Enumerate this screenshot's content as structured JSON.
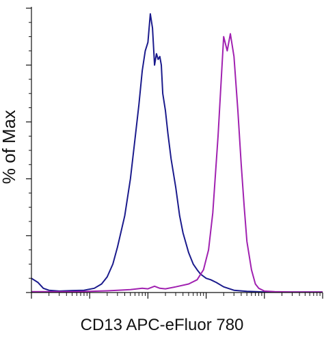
{
  "chart_data": {
    "type": "line",
    "title": "",
    "xlabel": "CD13 APC-eFluor 780",
    "ylabel": "% of Max",
    "x_scale": "log",
    "xlim": [
      1,
      100000
    ],
    "ylim": [
      0,
      100
    ],
    "grid": false,
    "legend": "none",
    "series": [
      {
        "color": "#1a1a8c",
        "x": [
          1.0,
          1.3,
          1.6,
          2.0,
          3.0,
          5.0,
          8.0,
          12.0,
          16.0,
          20.0,
          25.0,
          30.0,
          40.0,
          50.0,
          60.0,
          70.0,
          80.0,
          90.0,
          100.0,
          110.0,
          120.0,
          130.0,
          140.0,
          150.0,
          160.0,
          170.0,
          180.0,
          200.0,
          220.0,
          250.0,
          300.0,
          350.0,
          400.0,
          500.0,
          600.0,
          700.0,
          800.0,
          1000.0,
          1200.0,
          1500.0,
          2000.0,
          3000.0,
          5000.0,
          10000.0,
          30000.0,
          100000.0
        ],
        "y": [
          5.0,
          3.5,
          1.5,
          0.8,
          0.5,
          0.7,
          0.8,
          1.5,
          3.0,
          5.5,
          10.0,
          16.0,
          27.0,
          40.0,
          54.0,
          66.0,
          78.0,
          85.0,
          88.0,
          98.0,
          93.0,
          80.0,
          84.0,
          82.0,
          83.0,
          80.0,
          70.0,
          64.0,
          56.0,
          47.0,
          37.0,
          27.0,
          21.0,
          14.0,
          10.0,
          8.0,
          6.5,
          5.0,
          4.5,
          3.5,
          2.0,
          0.8,
          0.4,
          0.2,
          0.2,
          0.2
        ]
      },
      {
        "color": "#a020b0",
        "x": [
          1.0,
          5.0,
          10.0,
          20.0,
          30.0,
          50.0,
          80.0,
          100.0,
          130.0,
          160.0,
          200.0,
          300.0,
          500.0,
          700.0,
          900.0,
          1100.0,
          1300.0,
          1600.0,
          2000.0,
          2300.0,
          2600.0,
          3000.0,
          3500.0,
          4000.0,
          4500.0,
          5000.0,
          6000.0,
          7000.0,
          8000.0,
          10000.0,
          15000.0,
          30000.0,
          100000.0
        ],
        "y": [
          0.3,
          0.3,
          0.4,
          0.6,
          0.8,
          1.0,
          1.5,
          1.3,
          2.2,
          1.5,
          1.3,
          2.0,
          3.0,
          4.5,
          8.0,
          15.0,
          28.0,
          55.0,
          90.0,
          85.0,
          91.0,
          83.0,
          64.0,
          45.0,
          30.0,
          18.0,
          8.0,
          3.0,
          1.5,
          0.5,
          0.3,
          0.2,
          0.2
        ]
      }
    ]
  }
}
